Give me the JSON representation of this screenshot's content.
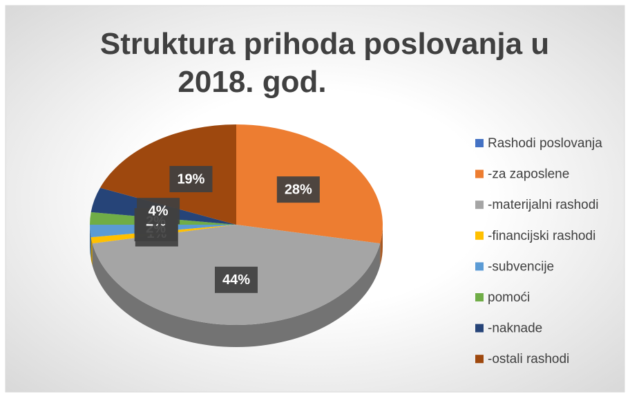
{
  "chart_data": {
    "type": "pie",
    "title": "Struktura prihoda poslovanja u 2018. god.",
    "categories": [
      "Rashodi poslovanja",
      "-za zaposlene",
      "-materijalni rashodi",
      "-financijski rashodi",
      "-subvencije",
      "pomoći",
      "-naknade",
      "-ostali rashodi"
    ],
    "values": [
      null,
      28,
      44,
      1,
      2,
      2,
      4,
      19
    ],
    "value_labels": [
      null,
      "28%",
      "44%",
      "1%",
      "2%",
      "2%",
      "4%",
      "19%"
    ],
    "colors": [
      "#4472c4",
      "#ed7d31",
      "#a5a5a5",
      "#ffc000",
      "#5b9bd5",
      "#70ad47",
      "#264478",
      "#9e480e"
    ],
    "legend": "right"
  }
}
